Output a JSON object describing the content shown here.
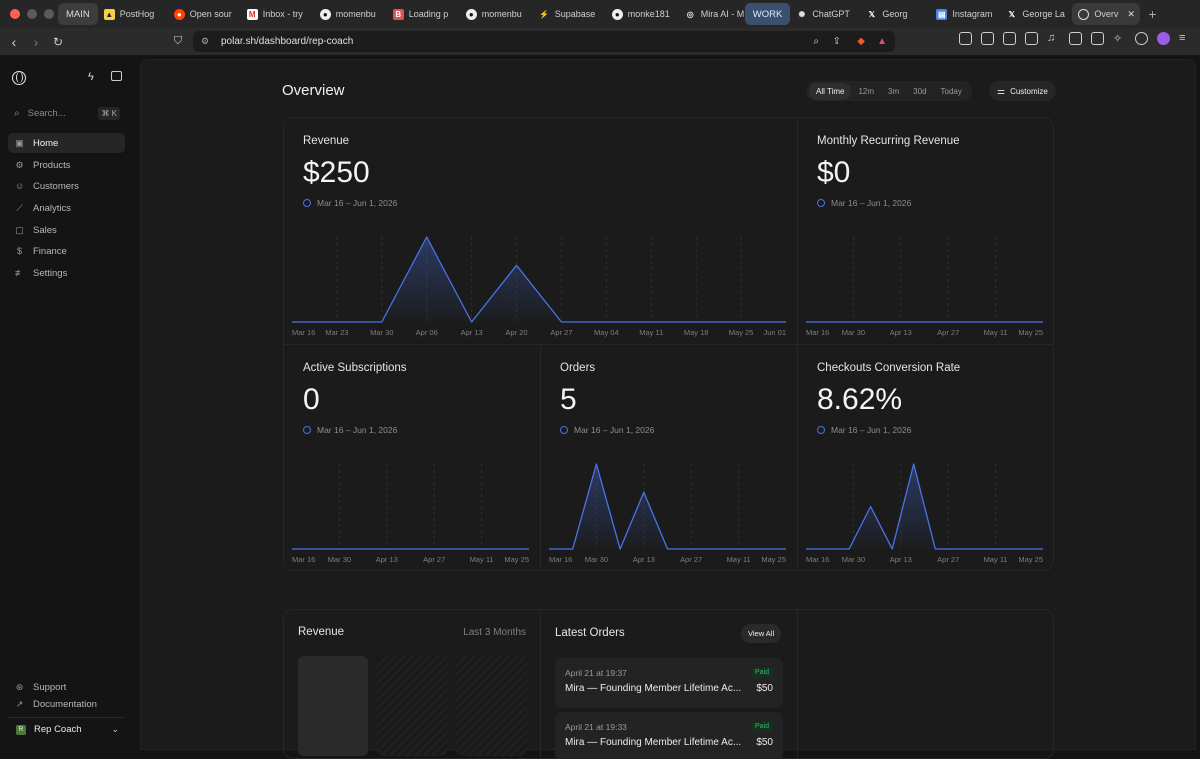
{
  "browser": {
    "tabs": [
      {
        "label": "MAIN",
        "icon": "group-label",
        "kind": "group"
      },
      {
        "label": "PostHog",
        "icon": "posthog-icon"
      },
      {
        "label": "Open sour",
        "icon": "reddit-icon"
      },
      {
        "label": "Inbox - try",
        "icon": "gmail-icon"
      },
      {
        "label": "momenbu",
        "icon": "github-icon"
      },
      {
        "label": "Loading p",
        "icon": "bc-icon"
      },
      {
        "label": "momenbu",
        "icon": "github-icon"
      },
      {
        "label": "Supabase",
        "icon": "supabase-icon"
      },
      {
        "label": "monke181",
        "icon": "github-icon"
      },
      {
        "label": "Mira AI - M",
        "icon": "globe-icon"
      },
      {
        "label": "WORK",
        "icon": "group-label",
        "kind": "group"
      },
      {
        "label": "ChatGPT",
        "icon": "chatgpt-icon"
      },
      {
        "label": "Georg",
        "icon": "x-icon"
      },
      {
        "label": "Instagram",
        "icon": "doc-icon"
      },
      {
        "label": "George La",
        "icon": "x-icon"
      },
      {
        "label": "Overv",
        "icon": "polar-icon",
        "active": true
      }
    ],
    "url": "polar.sh/dashboard/rep-coach"
  },
  "sidebar": {
    "search_placeholder": "Search...",
    "search_shortcut": "⌘ K",
    "items": [
      {
        "label": "Home",
        "icon": "home-icon"
      },
      {
        "label": "Products",
        "icon": "products-icon"
      },
      {
        "label": "Customers",
        "icon": "customers-icon"
      },
      {
        "label": "Analytics",
        "icon": "analytics-icon"
      },
      {
        "label": "Sales",
        "icon": "sales-icon"
      },
      {
        "label": "Finance",
        "icon": "finance-icon"
      },
      {
        "label": "Settings",
        "icon": "settings-icon"
      }
    ],
    "support": "Support",
    "documentation": "Documentation",
    "org": "Rep Coach"
  },
  "header": {
    "title": "Overview",
    "ranges": [
      "All Time",
      "12m",
      "3m",
      "30d",
      "Today"
    ],
    "selected_range": "All Time",
    "customize": "Customize"
  },
  "cards": {
    "revenue": {
      "label": "Revenue",
      "value": "$250",
      "range": "Mar 16 – Jun 1, 2026"
    },
    "mrr": {
      "label": "Monthly Recurring Revenue",
      "value": "$0",
      "range": "Mar 16 – Jun 1, 2026"
    },
    "subs": {
      "label": "Active Subscriptions",
      "value": "0",
      "range": "Mar 16 – Jun 1, 2026"
    },
    "orders": {
      "label": "Orders",
      "value": "5",
      "range": "Mar 16 – Jun 1, 2026"
    },
    "conv": {
      "label": "Checkouts Conversion Rate",
      "value": "8.62%",
      "range": "Mar 16 – Jun 1, 2026"
    }
  },
  "chart_data": [
    {
      "type": "area",
      "title": "Revenue",
      "x_ticks": [
        "Mar 16",
        "Mar 23",
        "Mar 30",
        "Apr 06",
        "Apr 13",
        "Apr 20",
        "Apr 27",
        "May 04",
        "May 11",
        "May 18",
        "May 25",
        "Jun 01"
      ],
      "values": [
        0,
        0,
        0,
        150,
        0,
        100,
        0,
        0,
        0,
        0,
        0,
        0
      ],
      "color": "#4a73e8"
    },
    {
      "type": "area",
      "title": "Monthly Recurring Revenue",
      "x_ticks": [
        "Mar 16",
        "Mar 30",
        "Apr 13",
        "Apr 27",
        "May 11",
        "May 25"
      ],
      "values": [
        0,
        0,
        0,
        0,
        0,
        0
      ],
      "color": "#4a73e8"
    },
    {
      "type": "area",
      "title": "Active Subscriptions",
      "x_ticks": [
        "Mar 16",
        "Mar 30",
        "Apr 13",
        "Apr 27",
        "May 11",
        "May 25"
      ],
      "values": [
        0,
        0,
        0,
        0,
        0,
        0
      ],
      "color": "#4a73e8"
    },
    {
      "type": "area",
      "title": "Orders",
      "x_ticks": [
        "Mar 16",
        "Mar 30",
        "Apr 13",
        "Apr 27",
        "May 11",
        "May 25"
      ],
      "values": [
        0,
        0,
        3,
        0,
        2,
        0,
        0,
        0,
        0,
        0,
        0
      ],
      "color": "#4a73e8"
    },
    {
      "type": "area",
      "title": "Checkouts Conversion Rate",
      "x_ticks": [
        "Mar 16",
        "Mar 30",
        "Apr 13",
        "Apr 27",
        "May 11",
        "May 25"
      ],
      "values": [
        0,
        0,
        0,
        14.3,
        0,
        28.6,
        0,
        0,
        0,
        0,
        0,
        0
      ],
      "color": "#4a73e8"
    }
  ],
  "revenue_panel": {
    "title": "Revenue",
    "period": "Last 3 Months"
  },
  "latest_orders": {
    "title": "Latest Orders",
    "view_all": "View All",
    "orders": [
      {
        "date": "April 21 at 19:37",
        "status": "Paid",
        "title": "Mira — Founding Member Lifetime Ac...",
        "price": "$50"
      },
      {
        "date": "April 21 at 19:33",
        "status": "Paid",
        "title": "Mira — Founding Member Lifetime Ac...",
        "price": "$50"
      }
    ]
  }
}
